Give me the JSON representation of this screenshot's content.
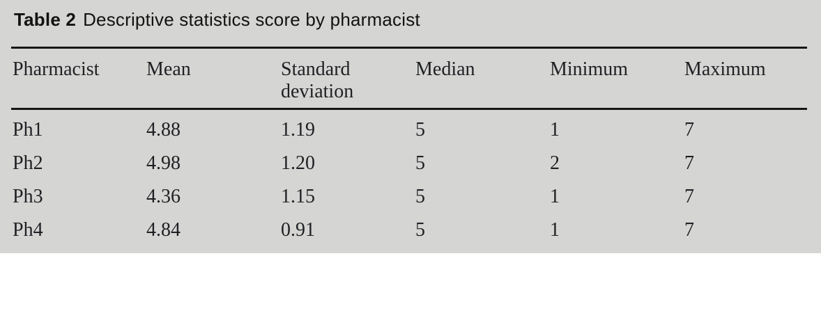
{
  "table": {
    "label": "Table 2",
    "title": "Descriptive statistics score by pharmacist",
    "columns": [
      "Pharmacist",
      "Mean",
      "Standard deviation",
      "Median",
      "Minimum",
      "Maximum"
    ],
    "rows": [
      [
        "Ph1",
        "4.88",
        "1.19",
        "5",
        "1",
        "7"
      ],
      [
        "Ph2",
        "4.98",
        "1.20",
        "5",
        "2",
        "7"
      ],
      [
        "Ph3",
        "4.36",
        "1.15",
        "5",
        "1",
        "7"
      ],
      [
        "Ph4",
        "4.84",
        "0.91",
        "5",
        "1",
        "7"
      ]
    ]
  },
  "colors": {
    "table_background": "#d5d5d3",
    "page_background": "#ffffff",
    "rule": "#161616",
    "text": "#1f2024"
  },
  "chart_data": {
    "type": "table",
    "title": "Table 2 Descriptive statistics score by pharmacist",
    "columns": [
      "Pharmacist",
      "Mean",
      "Standard deviation",
      "Median",
      "Minimum",
      "Maximum"
    ],
    "rows": [
      [
        "Ph1",
        4.88,
        1.19,
        5,
        1,
        7
      ],
      [
        "Ph2",
        4.98,
        1.2,
        5,
        2,
        7
      ],
      [
        "Ph3",
        4.36,
        1.15,
        5,
        1,
        7
      ],
      [
        "Ph4",
        4.84,
        0.91,
        5,
        1,
        7
      ]
    ]
  }
}
